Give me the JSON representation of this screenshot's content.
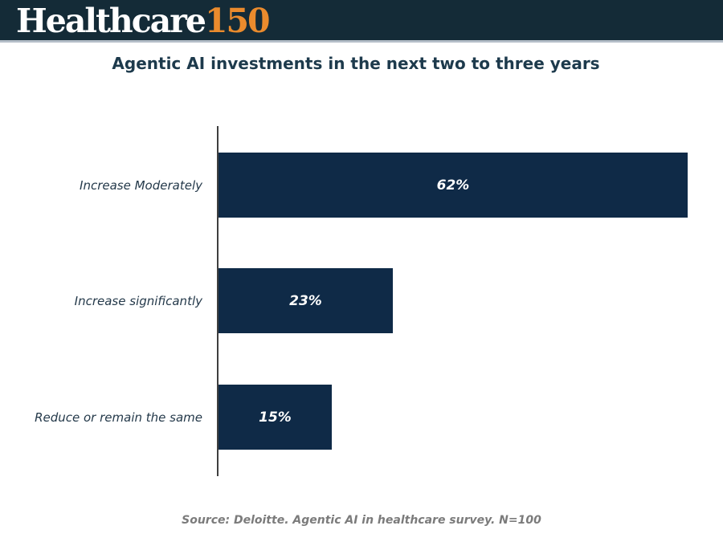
{
  "header": {
    "logo": {
      "text_primary": "Healthcare",
      "text_accent": "150"
    },
    "bg_color": "#142b37",
    "accent_color": "#ea8b2d",
    "divider_color": "#b4bec8"
  },
  "chart_data": {
    "type": "bar",
    "orientation": "horizontal",
    "title": "Agentic AI investments in the next two to three years",
    "categories": [
      "Increase Moderately",
      "Increase significantly",
      "Reduce or remain the same"
    ],
    "values": [
      62,
      23,
      15
    ],
    "value_labels": [
      "62%",
      "23%",
      "15%"
    ],
    "xlabel": "",
    "ylabel": "",
    "xlim": [
      0,
      62
    ],
    "grid": false,
    "legend": false,
    "bar_color": "#0f2a47",
    "value_label_color": "#ffffff",
    "axis_line_color": "#3f3f3f",
    "title_color": "#1d3a4c",
    "category_label_color": "#24394a"
  },
  "source": "Source: Deloitte. Agentic AI in healthcare survey. N=100"
}
